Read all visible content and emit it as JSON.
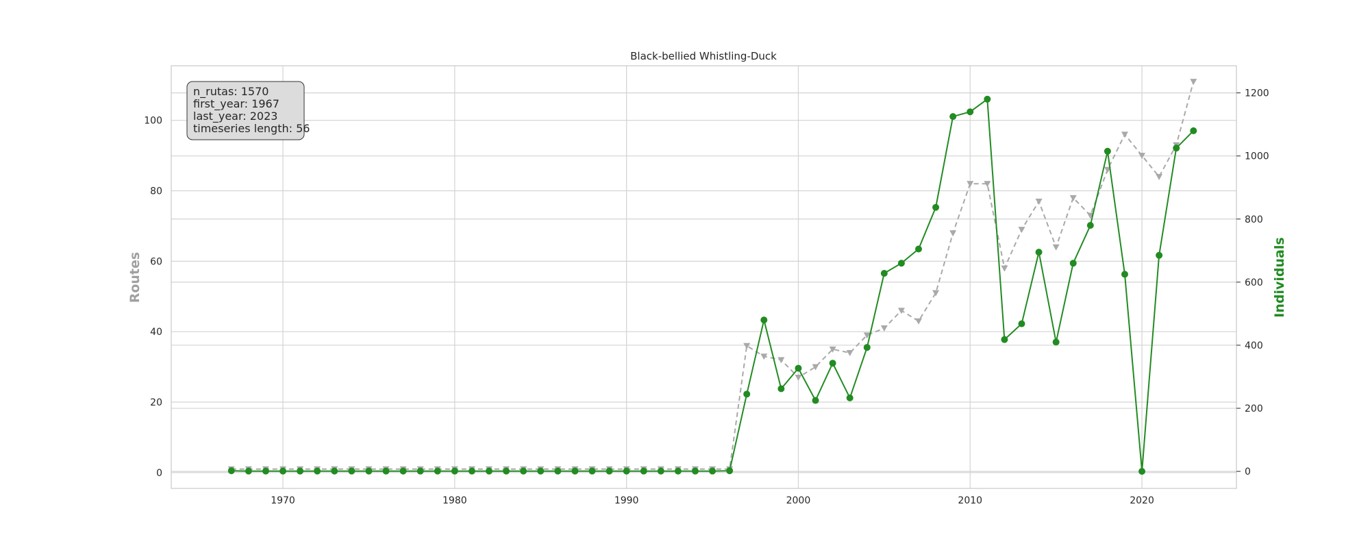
{
  "chart_data": {
    "type": "line",
    "title": "Black-bellied Whistling-Duck",
    "xlabel": "",
    "ylabel_left": "Routes",
    "ylabel_right": "Individuals",
    "xlim": [
      1963.5,
      2025.5
    ],
    "ylim_left": [
      -4.5,
      115.5
    ],
    "ylim_right": [
      -54,
      1286
    ],
    "x_ticks": [
      1970,
      1980,
      1990,
      2000,
      2010,
      2020
    ],
    "y_left_ticks": [
      0,
      20,
      40,
      60,
      80,
      100
    ],
    "y_right_ticks": [
      0,
      200,
      400,
      600,
      800,
      1000,
      1200
    ],
    "grid": true,
    "colors": {
      "routes": "#a9a9a9",
      "individuals": "#228B22",
      "grid": "#d3d3d3",
      "box_fill": "#dcdcdc"
    },
    "info_box": [
      "n_rutas: 1570",
      "first_year: 1967",
      "last_year: 2023",
      "timeseries length: 56"
    ],
    "series": [
      {
        "axis": "left",
        "style": "dashed-triangle",
        "x": [
          1967,
          1968,
          1969,
          1970,
          1971,
          1972,
          1973,
          1974,
          1975,
          1976,
          1977,
          1978,
          1979,
          1980,
          1981,
          1982,
          1983,
          1984,
          1985,
          1986,
          1987,
          1988,
          1989,
          1990,
          1991,
          1992,
          1993,
          1994,
          1995,
          1996,
          1997,
          1998,
          1999,
          2000,
          2001,
          2002,
          2003,
          2004,
          2005,
          2006,
          2007,
          2008,
          2009,
          2010,
          2011,
          2012,
          2013,
          2014,
          2015,
          2016,
          2017,
          2018,
          2019,
          2020,
          2021,
          2022,
          2023
        ],
        "values": [
          1,
          1,
          1,
          1,
          1,
          1,
          1,
          1,
          1,
          1,
          1,
          1,
          1,
          1,
          1,
          1,
          1,
          1,
          1,
          1,
          1,
          1,
          1,
          1,
          1,
          1,
          1,
          1,
          1,
          1,
          36,
          33,
          32,
          27,
          30,
          35,
          34,
          39,
          41,
          46,
          43,
          51,
          68,
          82,
          82,
          58,
          69,
          77,
          64,
          78,
          73,
          86,
          96,
          90,
          84,
          93,
          111
        ]
      },
      {
        "axis": "right",
        "style": "solid-circle",
        "x": [
          1967,
          1968,
          1969,
          1970,
          1971,
          1972,
          1973,
          1974,
          1975,
          1976,
          1977,
          1978,
          1979,
          1980,
          1981,
          1982,
          1983,
          1984,
          1985,
          1986,
          1987,
          1988,
          1989,
          1990,
          1991,
          1992,
          1993,
          1994,
          1995,
          1996,
          1997,
          1998,
          1999,
          2000,
          2001,
          2002,
          2003,
          2004,
          2005,
          2006,
          2007,
          2008,
          2009,
          2010,
          2011,
          2012,
          2013,
          2014,
          2015,
          2016,
          2017,
          2018,
          2019,
          2020,
          2021,
          2022,
          2023
        ],
        "values": [
          2,
          1,
          1,
          1,
          1,
          1,
          1,
          1,
          1,
          1,
          1,
          1,
          1,
          1,
          1,
          1,
          1,
          1,
          1,
          1,
          1,
          1,
          1,
          1,
          1,
          1,
          1,
          1,
          1,
          2,
          245,
          480,
          262,
          327,
          225,
          343,
          233,
          393,
          628,
          660,
          705,
          837,
          1125,
          1140,
          1180,
          418,
          468,
          695,
          410,
          660,
          780,
          1015,
          625,
          0,
          685,
          1025,
          1080
        ]
      }
    ]
  }
}
